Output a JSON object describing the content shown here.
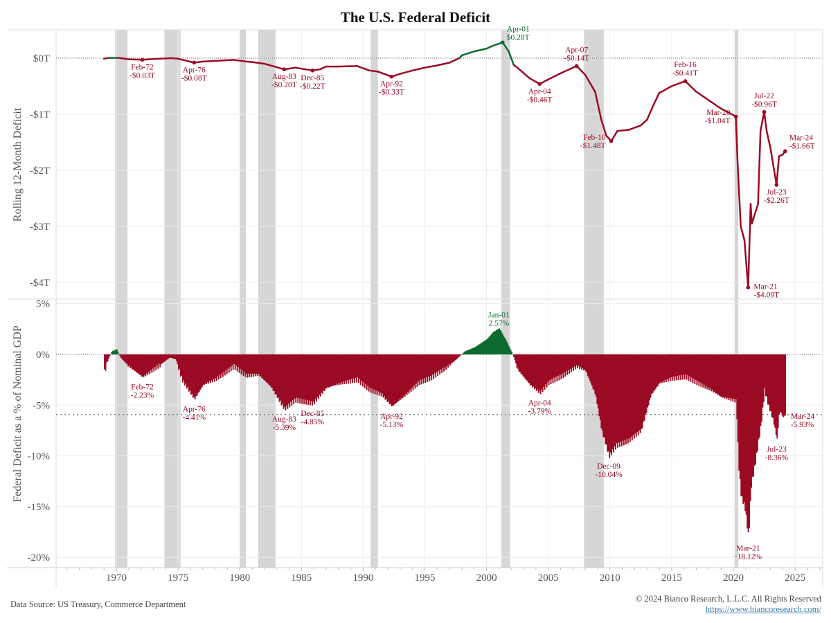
{
  "chart_data": [
    {
      "type": "line",
      "title": "The U.S. Federal Deficit",
      "ylabel": "Rolling 12-Month Deficit",
      "ylim": [
        -4.3,
        0.55
      ],
      "yticks": [
        {
          "v": 0,
          "label": "$0T"
        },
        {
          "v": -1,
          "label": "-$1T"
        },
        {
          "v": -2,
          "label": "-$2T"
        },
        {
          "v": -3,
          "label": "-$3T"
        },
        {
          "v": -4,
          "label": "-$4T"
        }
      ],
      "reference_line": 0,
      "points": [
        [
          1969.0,
          -0.01
        ],
        [
          1969.4,
          0.005
        ],
        [
          1970.2,
          0.005
        ],
        [
          1971,
          -0.02
        ],
        [
          1972.1,
          -0.03
        ],
        [
          1973,
          -0.015
        ],
        [
          1974.5,
          0.0
        ],
        [
          1975.0,
          -0.01
        ],
        [
          1976.3,
          -0.08
        ],
        [
          1977,
          -0.06
        ],
        [
          1978,
          -0.05
        ],
        [
          1979.5,
          -0.03
        ],
        [
          1980.5,
          -0.06
        ],
        [
          1981,
          -0.07
        ],
        [
          1982,
          -0.1
        ],
        [
          1983.6,
          -0.2
        ],
        [
          1984.5,
          -0.17
        ],
        [
          1985.9,
          -0.22
        ],
        [
          1986.5,
          -0.2
        ],
        [
          1987,
          -0.15
        ],
        [
          1988,
          -0.15
        ],
        [
          1989.5,
          -0.14
        ],
        [
          1990.5,
          -0.22
        ],
        [
          1991.2,
          -0.24
        ],
        [
          1992.3,
          -0.33
        ],
        [
          1993,
          -0.28
        ],
        [
          1994,
          -0.22
        ],
        [
          1995,
          -0.17
        ],
        [
          1996,
          -0.13
        ],
        [
          1997,
          -0.08
        ],
        [
          1997.8,
          0.0
        ],
        [
          1998,
          0.05
        ],
        [
          1999,
          0.12
        ],
        [
          2000,
          0.17
        ],
        [
          2000.5,
          0.22
        ],
        [
          2001.3,
          0.28
        ],
        [
          2001.8,
          0.12
        ],
        [
          2002.2,
          -0.12
        ],
        [
          2002.5,
          -0.17
        ],
        [
          2003.5,
          -0.36
        ],
        [
          2004.3,
          -0.46
        ],
        [
          2005,
          -0.38
        ],
        [
          2006,
          -0.27
        ],
        [
          2007.3,
          -0.14
        ],
        [
          2008,
          -0.3
        ],
        [
          2008.8,
          -0.6
        ],
        [
          2009.3,
          -1.1
        ],
        [
          2009.7,
          -1.38
        ],
        [
          2010.1,
          -1.48
        ],
        [
          2010.6,
          -1.3
        ],
        [
          2011.5,
          -1.28
        ],
        [
          2012.5,
          -1.2
        ],
        [
          2013,
          -1.1
        ],
        [
          2013.5,
          -0.85
        ],
        [
          2014,
          -0.62
        ],
        [
          2015,
          -0.5
        ],
        [
          2016.1,
          -0.41
        ],
        [
          2017,
          -0.6
        ],
        [
          2018,
          -0.75
        ],
        [
          2019,
          -0.9
        ],
        [
          2020.2,
          -1.04
        ],
        [
          2020.35,
          -1.9
        ],
        [
          2020.6,
          -3.0
        ],
        [
          2020.9,
          -3.25
        ],
        [
          2021.2,
          -4.09
        ],
        [
          2021.4,
          -2.6
        ],
        [
          2021.5,
          -2.95
        ],
        [
          2022,
          -2.6
        ],
        [
          2022.2,
          -1.3
        ],
        [
          2022.5,
          -0.96
        ],
        [
          2022.7,
          -1.3
        ],
        [
          2023.0,
          -1.6
        ],
        [
          2023.5,
          -2.26
        ],
        [
          2023.7,
          -1.75
        ],
        [
          2024.0,
          -1.72
        ],
        [
          2024.2,
          -1.66
        ]
      ],
      "annotations": [
        {
          "date": "Feb-72",
          "value": "-$0.03T",
          "x": 1972.1,
          "y": -0.03,
          "place": "below"
        },
        {
          "date": "Apr-76",
          "value": "-$0.08T",
          "x": 1976.3,
          "y": -0.08,
          "place": "below"
        },
        {
          "date": "Aug-83",
          "value": "-$0.20T",
          "x": 1983.6,
          "y": -0.2,
          "place": "below"
        },
        {
          "date": "Dec-85",
          "value": "-$0.22T",
          "x": 1985.9,
          "y": -0.22,
          "place": "below"
        },
        {
          "date": "Apr-92",
          "value": "-$0.33T",
          "x": 1992.3,
          "y": -0.33,
          "place": "below"
        },
        {
          "date": "Apr-01",
          "value": "$0.28T",
          "x": 2001.3,
          "y": 0.28,
          "place": "right-above",
          "color": "green"
        },
        {
          "date": "Apr-04",
          "value": "-$0.46T",
          "x": 2004.3,
          "y": -0.46,
          "place": "below"
        },
        {
          "date": "Apr-07",
          "value": "-$0.14T",
          "x": 2007.3,
          "y": -0.14,
          "place": "above"
        },
        {
          "date": "Feb-10",
          "value": "-$1.48T",
          "x": 2010.1,
          "y": -1.48,
          "place": "left"
        },
        {
          "date": "Feb-16",
          "value": "-$0.41T",
          "x": 2016.1,
          "y": -0.41,
          "place": "above"
        },
        {
          "date": "Mar-20",
          "value": "-$1.04T",
          "x": 2020.2,
          "y": -1.04,
          "place": "left"
        },
        {
          "date": "Mar-21",
          "value": "-$4.09T",
          "x": 2021.2,
          "y": -4.09,
          "place": "right"
        },
        {
          "date": "Jul-22",
          "value": "-$0.96T",
          "x": 2022.5,
          "y": -0.96,
          "place": "above"
        },
        {
          "date": "Jul-23",
          "value": "-$2.26T",
          "x": 2023.5,
          "y": -2.26,
          "place": "below"
        },
        {
          "date": "Mar-24",
          "value": "-$1.66T",
          "x": 2024.2,
          "y": -1.66,
          "place": "right-above"
        }
      ]
    },
    {
      "type": "bar",
      "ylabel": "Federal Deficit as a % of Nominal GDP",
      "ylim": [
        -21,
        5.5
      ],
      "yticks": [
        {
          "v": 5,
          "label": "5%"
        },
        {
          "v": 0,
          "label": "0%"
        },
        {
          "v": -5,
          "label": "-5%"
        },
        {
          "v": -10,
          "label": "-10%"
        },
        {
          "v": -15,
          "label": "-15%"
        },
        {
          "v": -20,
          "label": "-20%"
        }
      ],
      "reference_lines": [
        0,
        -5.93
      ],
      "points": [
        [
          1969.0,
          -1.7
        ],
        [
          1969.3,
          -0.5
        ],
        [
          1969.6,
          0.3
        ],
        [
          1970.0,
          0.5
        ],
        [
          1970.3,
          -0.3
        ],
        [
          1971,
          -1.2
        ],
        [
          1972.1,
          -2.23
        ],
        [
          1973,
          -1.5
        ],
        [
          1974.3,
          -0.3
        ],
        [
          1974.8,
          -0.5
        ],
        [
          1975.3,
          -2.5
        ],
        [
          1976.3,
          -4.41
        ],
        [
          1977,
          -3
        ],
        [
          1978,
          -2.5
        ],
        [
          1979.5,
          -1.2
        ],
        [
          1980.5,
          -2.1
        ],
        [
          1981.5,
          -2.0
        ],
        [
          1982.5,
          -3.2
        ],
        [
          1983.6,
          -5.39
        ],
        [
          1984.5,
          -4.5
        ],
        [
          1985.9,
          -4.85
        ],
        [
          1987,
          -3.3
        ],
        [
          1988,
          -2.9
        ],
        [
          1989.5,
          -2.5
        ],
        [
          1990.5,
          -3.5
        ],
        [
          1991.5,
          -4.0
        ],
        [
          1992.3,
          -5.13
        ],
        [
          1993.5,
          -3.9
        ],
        [
          1994.5,
          -2.8
        ],
        [
          1995.5,
          -2.3
        ],
        [
          1996.5,
          -1.5
        ],
        [
          1997.5,
          -0.5
        ],
        [
          1998.2,
          0.3
        ],
        [
          1999,
          0.7
        ],
        [
          2000,
          1.5
        ],
        [
          2000.5,
          2.2
        ],
        [
          2001.0,
          2.57
        ],
        [
          2001.5,
          1.5
        ],
        [
          2002.1,
          0
        ],
        [
          2002.5,
          -1.5
        ],
        [
          2003.5,
          -3
        ],
        [
          2004.3,
          -3.79
        ],
        [
          2005,
          -2.8
        ],
        [
          2006,
          -2.2
        ],
        [
          2007.3,
          -1.2
        ],
        [
          2008,
          -1.6
        ],
        [
          2008.8,
          -4
        ],
        [
          2009.3,
          -7.5
        ],
        [
          2009.9,
          -10.04
        ],
        [
          2010.5,
          -9
        ],
        [
          2011.5,
          -8.5
        ],
        [
          2012.5,
          -7.5
        ],
        [
          2013.3,
          -4
        ],
        [
          2014,
          -2.8
        ],
        [
          2015,
          -2.4
        ],
        [
          2016.1,
          -2.2
        ],
        [
          2017,
          -2.8
        ],
        [
          2018,
          -3.4
        ],
        [
          2019,
          -4.2
        ],
        [
          2020.2,
          -4.6
        ],
        [
          2020.4,
          -11
        ],
        [
          2020.6,
          -14
        ],
        [
          2020.9,
          -15
        ],
        [
          2021.2,
          -18.12
        ],
        [
          2021.4,
          -13
        ],
        [
          2021.7,
          -11
        ],
        [
          2022.2,
          -7
        ],
        [
          2022.5,
          -3.5
        ],
        [
          2022.8,
          -5
        ],
        [
          2023.2,
          -6.5
        ],
        [
          2023.5,
          -8.36
        ],
        [
          2023.7,
          -5.5
        ],
        [
          2024.0,
          -6.2
        ],
        [
          2024.2,
          -5.93
        ]
      ],
      "annotations": [
        {
          "date": "Feb-72",
          "value": "-2.23%",
          "x": 1972.1,
          "y": -2.23,
          "place": "below"
        },
        {
          "date": "Apr-76",
          "value": "-4.41%",
          "x": 1976.3,
          "y": -4.41,
          "place": "below"
        },
        {
          "date": "Aug-83",
          "value": "-5.39%",
          "x": 1983.6,
          "y": -5.39,
          "place": "below"
        },
        {
          "date": "Dec-85",
          "value": "-4.85%",
          "x": 1985.9,
          "y": -4.85,
          "place": "below"
        },
        {
          "date": "Apr-92",
          "value": "-5.13%",
          "x": 1992.3,
          "y": -5.13,
          "place": "below"
        },
        {
          "date": "Jan-01",
          "value": "2.57%",
          "x": 2001.0,
          "y": 2.57,
          "place": "above",
          "color": "green"
        },
        {
          "date": "Apr-04",
          "value": "-3.79%",
          "x": 2004.3,
          "y": -3.79,
          "place": "below"
        },
        {
          "date": "Dec-09",
          "value": "-10.04%",
          "x": 2009.9,
          "y": -10.04,
          "place": "below"
        },
        {
          "date": "Mar-21",
          "value": "-18.12%",
          "x": 2021.2,
          "y": -18.12,
          "place": "below"
        },
        {
          "date": "Jul-23",
          "value": "-8.36%",
          "x": 2023.5,
          "y": -8.36,
          "place": "below"
        },
        {
          "date": "Mar-24",
          "value": "-5.93%",
          "x": 2024.2,
          "y": -5.93,
          "place": "right"
        }
      ]
    }
  ],
  "x_axis": {
    "range": [
      1965,
      2027
    ],
    "ticks": [
      1970,
      1975,
      1980,
      1985,
      1990,
      1995,
      2000,
      2005,
      2010,
      2015,
      2020,
      2025
    ]
  },
  "recessions": [
    [
      1969.9,
      1970.9
    ],
    [
      1973.9,
      1975.2
    ],
    [
      1980.0,
      1980.5
    ],
    [
      1981.5,
      1982.9
    ],
    [
      1990.6,
      1991.2
    ],
    [
      2001.2,
      2001.9
    ],
    [
      2007.9,
      2009.5
    ],
    [
      2020.1,
      2020.4
    ]
  ],
  "colors": {
    "deficit": "#9b0a23",
    "surplus": "#0c6a2e",
    "recession": "#d6d6d6",
    "grid": "#ececec"
  },
  "footer": {
    "source": "Data Source: US Treasury, Commerce Department",
    "copyright": "© 2024 Bianco Research, L.L.C. All Rights Reserved",
    "url": "https://www.biancoresearch.com/"
  }
}
